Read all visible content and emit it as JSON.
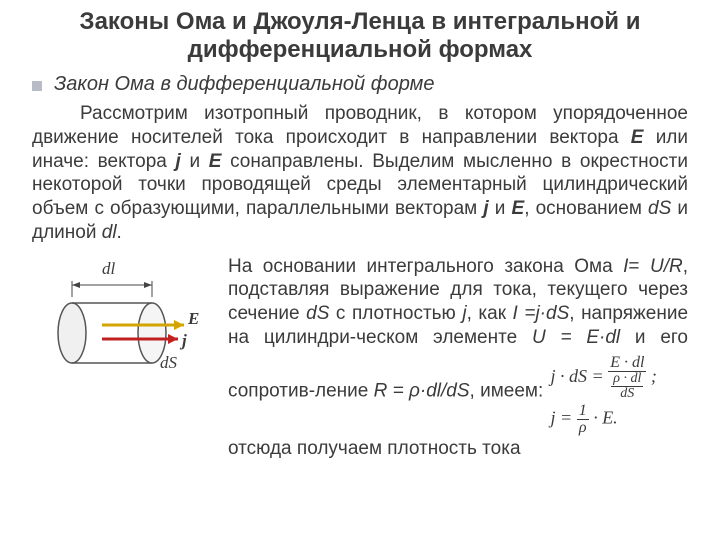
{
  "title": "Законы Ома и Джоуля-Ленца в интегральной и дифференциальной формах",
  "subtitle": "Закон Ома в дифференциальной форме",
  "paragraph_html": "Рассмотрим изотропный проводник, в котором упорядоченное движение носителей тока происходит в направлении вектора <b class='vec'>E</b> или иначе: вектора <b class='vec'>j</b> и <b class='vec'>E</b> сонаправлены. Выделим мысленно в окрестности некоторой точки проводящей среды элементарный цилиндрический объем с образующими, параллельными векторам <b class='vec'>j</b> и <b class='vec'>E</b>, основанием <i class='sym'>dS</i> и длиной <i class='sym'>dl</i>.",
  "lower_para_html": "На основании интегрального закона Ома <i class='sym'>I</i>= <i class='sym'>U/R</i>, подставляя выражение для тока, текущего через сечение <i class='sym'>dS</i> с плотностью <i class='sym'>j</i>, как  <i class='sym'>I =j·dS</i>, напряжение на цилиндри-ческом элементе <i class='sym'>U = E·dl</i> и его сопротив-ление <i class='sym'>R = ρ·dl/dS</i>, имеем:",
  "lower_tail": "отсюда получаем плотность тока",
  "fig": {
    "dl": "dl",
    "E": "E",
    "j": "j",
    "dS": "dS",
    "colors": {
      "body_fill": "#f0f0f0",
      "body_stroke": "#555555",
      "E_arrow": "#d4a500",
      "j_arrow": "#c02020",
      "dim_line": "#444444"
    }
  },
  "eq": {
    "line1_lhs": "j · dS =",
    "line1_num": "E · dl",
    "line1_den_num": "ρ · dl",
    "line1_den_den": "dS",
    "line2_lhs": "j =",
    "line2_num": "1",
    "line2_den": "ρ",
    "line2_rhs": "· E."
  },
  "style": {
    "title_fontsize": 24,
    "body_fontsize": 19,
    "text_color": "#3b3b3b",
    "bullet_color": "#b8bcc6",
    "background": "#ffffff"
  }
}
